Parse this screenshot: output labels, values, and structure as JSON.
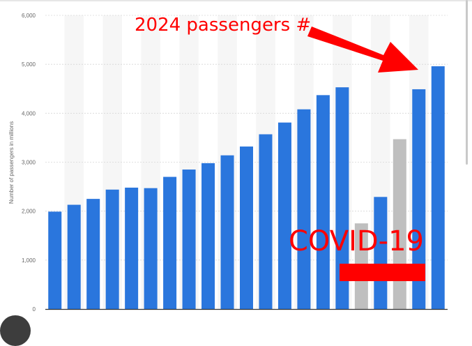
{
  "chart_data": {
    "type": "bar",
    "title": "",
    "xlabel": "",
    "ylabel": "Number of passengers in millions",
    "ylim": [
      0,
      6000
    ],
    "yticks": [
      0,
      1000,
      2000,
      3000,
      4000,
      5000,
      6000
    ],
    "ytick_labels": [
      "0",
      "1,000",
      "2,000",
      "3,000",
      "4,000",
      "5,000",
      "6,000"
    ],
    "grid": true,
    "legend": "none",
    "categories": [
      "",
      "",
      "",
      "",
      "",
      "",
      "",
      "",
      "",
      "",
      "",
      "",
      "",
      "",
      "",
      "",
      "",
      "",
      "",
      "",
      ""
    ],
    "values": [
      1990,
      2130,
      2250,
      2440,
      2480,
      2470,
      2700,
      2850,
      2980,
      3140,
      3320,
      3570,
      3810,
      4080,
      4370,
      4530,
      1750,
      2290,
      3470,
      4490,
      4960
    ],
    "bar_colors": [
      "#2a76dd",
      "#2a76dd",
      "#2a76dd",
      "#2a76dd",
      "#2a76dd",
      "#2a76dd",
      "#2a76dd",
      "#2a76dd",
      "#2a76dd",
      "#2a76dd",
      "#2a76dd",
      "#2a76dd",
      "#2a76dd",
      "#2a76dd",
      "#2a76dd",
      "#2a76dd",
      "#bfbfbf",
      "#2a76dd",
      "#bfbfbf",
      "#2a76dd",
      "#2a76dd"
    ]
  },
  "annotations": {
    "arrow_text": "2024 passengers #",
    "covid_text": "COVID-19",
    "color": "#ff0000"
  },
  "colors": {
    "bar": "#2a76dd",
    "covid_bar": "#bfbfbf",
    "band": "#f6f6f6",
    "grid": "#d6d6d6",
    "axis": "#333333"
  }
}
